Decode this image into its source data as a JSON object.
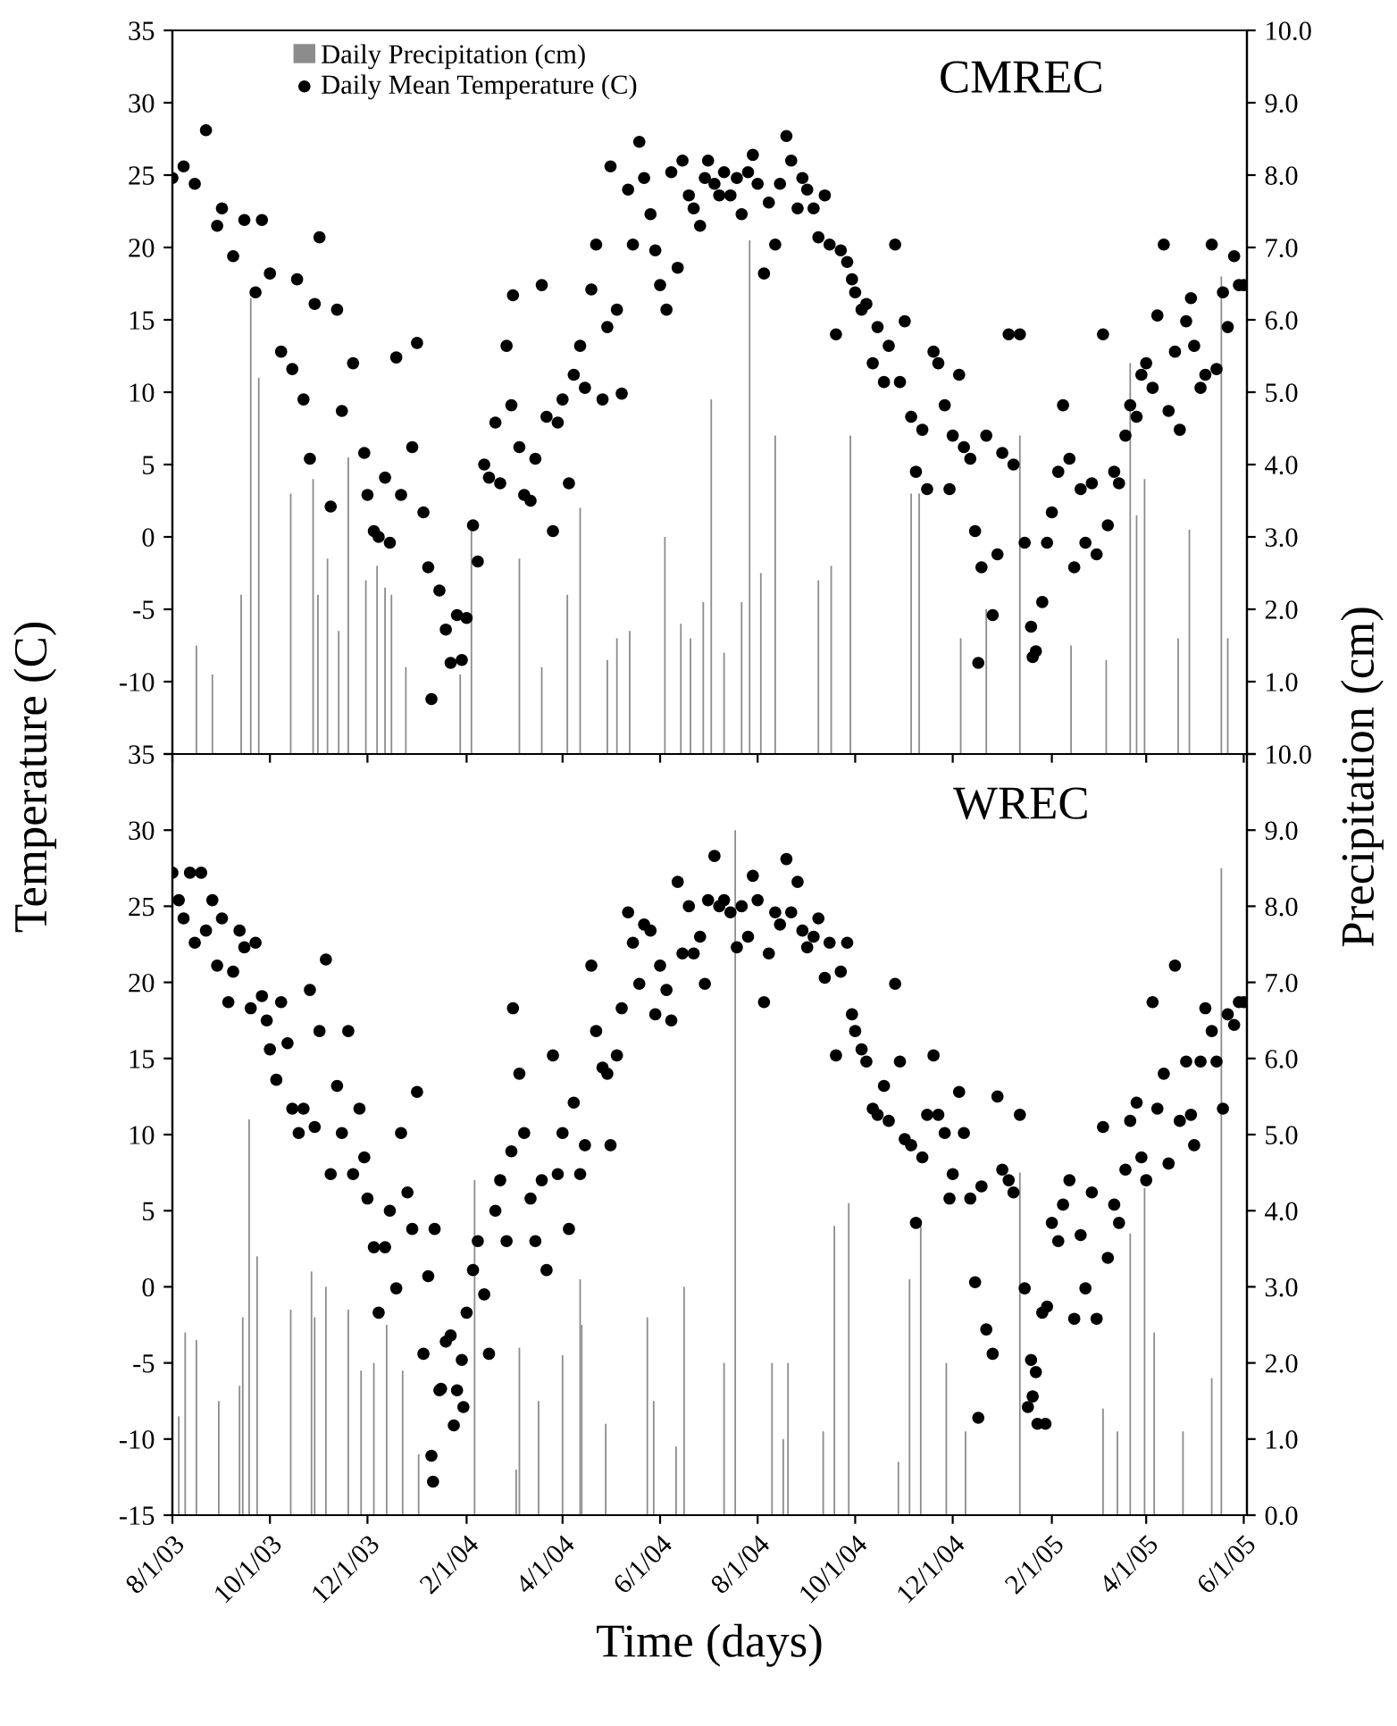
{
  "chart_data": [
    {
      "type": "scatter",
      "title": "CMREC",
      "ylabel": "Temperature (C)",
      "y2label": "Precipitation (cm)",
      "marker": "circle",
      "grid": false,
      "legend": "top left",
      "tick_labels": "y",
      "xlim": [
        "2003-08-01",
        "2005-06-03"
      ],
      "xticks": [
        {
          "value": "2003-08-01",
          "label": null
        },
        {
          "value": "2003-10-01",
          "label": null
        },
        {
          "value": "2003-12-01",
          "label": null
        },
        {
          "value": "2004-02-01",
          "label": null
        },
        {
          "value": "2004-04-01",
          "label": null
        },
        {
          "value": "2004-06-01",
          "label": null
        },
        {
          "value": "2004-08-01",
          "label": null
        },
        {
          "value": "2004-10-01",
          "label": null
        },
        {
          "value": "2004-12-01",
          "label": null
        },
        {
          "value": "2005-02-01",
          "label": null
        },
        {
          "value": "2005-04-01",
          "label": null
        },
        {
          "value": "2005-06-01",
          "label": null
        }
      ],
      "ylim": [
        -15,
        35
      ],
      "yticks": [
        {
          "value": -15,
          "label": null
        },
        -10,
        -5,
        0,
        5,
        10,
        15,
        20,
        25,
        30,
        35
      ],
      "y2lim": [
        0,
        10
      ],
      "y2ticks": [
        {
          "value": 0,
          "label": null
        },
        {
          "value": 1,
          "label": "1.0"
        },
        {
          "value": 2,
          "label": "2.0"
        },
        {
          "value": 3,
          "label": "3.0"
        },
        {
          "value": 4,
          "label": "4.0"
        },
        {
          "value": 5,
          "label": "5.0"
        },
        {
          "value": 6,
          "label": "6.0"
        },
        {
          "value": 7,
          "label": "7.0"
        },
        {
          "value": 8,
          "label": "8.0"
        },
        {
          "value": 9,
          "label": "9.0"
        },
        {
          "value": 10,
          "label": "10.0"
        }
      ],
      "series": [
        {
          "name": "Daily Precipitation (cm)",
          "type": "bar",
          "axis": "y2",
          "color": "#8c8c8c",
          "x": [
            "2003-08-16",
            "2003-08-26",
            "2003-09-13",
            "2003-09-19",
            "2003-09-24",
            "2003-10-14",
            "2003-10-28",
            "2003-10-31",
            "2003-11-06",
            "2003-11-13",
            "2003-11-19",
            "2003-11-30",
            "2003-12-07",
            "2003-12-12",
            "2003-12-16",
            "2003-12-25",
            "2004-01-28",
            "2004-02-04",
            "2004-03-05",
            "2004-03-19",
            "2004-04-04",
            "2004-04-12",
            "2004-04-29",
            "2004-05-05",
            "2004-05-13",
            "2004-06-04",
            "2004-06-14",
            "2004-06-20",
            "2004-06-28",
            "2004-07-03",
            "2004-07-11",
            "2004-07-22",
            "2004-07-27",
            "2004-08-03",
            "2004-08-12",
            "2004-09-08",
            "2004-09-16",
            "2004-09-28",
            "2004-11-05",
            "2004-11-10",
            "2004-12-06",
            "2004-12-22",
            "2005-01-12",
            "2005-02-13",
            "2005-03-07",
            "2005-03-22",
            "2005-03-26",
            "2005-03-31",
            "2005-04-21",
            "2005-04-28",
            "2005-05-18",
            "2005-05-22"
          ],
          "values": [
            1.5,
            1.1,
            2.2,
            6.3,
            5.2,
            3.6,
            3.8,
            2.2,
            2.7,
            1.7,
            4.1,
            2.4,
            2.6,
            2.3,
            2.2,
            1.2,
            1.1,
            3.1,
            2.7,
            1.2,
            2.2,
            3.4,
            1.3,
            1.6,
            1.7,
            3.0,
            1.8,
            1.6,
            2.1,
            4.9,
            1.4,
            2.1,
            7.1,
            2.5,
            4.4,
            2.4,
            2.6,
            4.4,
            3.6,
            3.6,
            1.6,
            2.0,
            4.4,
            1.5,
            1.3,
            5.4,
            3.3,
            3.8,
            1.6,
            3.1,
            6.6,
            1.6
          ]
        },
        {
          "name": "Daily Mean Temperature (C)",
          "color": "#000000",
          "x": [
            "2003-08-01",
            "2003-08-08",
            "2003-08-15",
            "2003-08-22",
            "2003-08-29",
            "2003-09-01",
            "2003-09-08",
            "2003-09-15",
            "2003-09-22",
            "2003-09-26",
            "2003-10-01",
            "2003-10-08",
            "2003-10-15",
            "2003-10-18",
            "2003-10-22",
            "2003-10-26",
            "2003-10-29",
            "2003-11-01",
            "2003-11-08",
            "2003-11-12",
            "2003-11-15",
            "2003-11-22",
            "2003-11-29",
            "2003-12-01",
            "2003-12-05",
            "2003-12-08",
            "2003-12-12",
            "2003-12-15",
            "2003-12-19",
            "2003-12-22",
            "2003-12-29",
            "2004-01-01",
            "2004-01-05",
            "2004-01-08",
            "2004-01-10",
            "2004-01-15",
            "2004-01-19",
            "2004-01-22",
            "2004-01-26",
            "2004-01-29",
            "2004-02-01",
            "2004-02-05",
            "2004-02-08",
            "2004-02-12",
            "2004-02-15",
            "2004-02-19",
            "2004-02-22",
            "2004-02-26",
            "2004-02-29",
            "2004-03-01",
            "2004-03-05",
            "2004-03-08",
            "2004-03-12",
            "2004-03-15",
            "2004-03-19",
            "2004-03-22",
            "2004-03-26",
            "2004-03-29",
            "2004-04-01",
            "2004-04-05",
            "2004-04-08",
            "2004-04-12",
            "2004-04-15",
            "2004-04-19",
            "2004-04-22",
            "2004-04-26",
            "2004-04-29",
            "2004-05-01",
            "2004-05-05",
            "2004-05-08",
            "2004-05-12",
            "2004-05-15",
            "2004-05-19",
            "2004-05-22",
            "2004-05-26",
            "2004-05-29",
            "2004-06-01",
            "2004-06-05",
            "2004-06-08",
            "2004-06-12",
            "2004-06-15",
            "2004-06-19",
            "2004-06-22",
            "2004-06-26",
            "2004-06-29",
            "2004-07-01",
            "2004-07-05",
            "2004-07-08",
            "2004-07-11",
            "2004-07-15",
            "2004-07-19",
            "2004-07-22",
            "2004-07-26",
            "2004-07-29",
            "2004-08-01",
            "2004-08-05",
            "2004-08-08",
            "2004-08-12",
            "2004-08-15",
            "2004-08-19",
            "2004-08-22",
            "2004-08-26",
            "2004-08-29",
            "2004-09-01",
            "2004-09-05",
            "2004-09-08",
            "2004-09-12",
            "2004-09-15",
            "2004-09-19",
            "2004-09-22",
            "2004-09-26",
            "2004-09-29",
            "2004-10-01",
            "2004-10-05",
            "2004-10-08",
            "2004-10-12",
            "2004-10-15",
            "2004-10-19",
            "2004-10-22",
            "2004-10-26",
            "2004-10-29",
            "2004-11-01",
            "2004-11-05",
            "2004-11-08",
            "2004-11-12",
            "2004-11-15",
            "2004-11-19",
            "2004-11-22",
            "2004-11-26",
            "2004-11-29",
            "2004-12-01",
            "2004-12-05",
            "2004-12-08",
            "2004-12-12",
            "2004-12-15",
            "2004-12-17",
            "2004-12-19",
            "2004-12-22",
            "2004-12-26",
            "2004-12-29",
            "2005-01-01",
            "2005-01-05",
            "2005-01-08",
            "2005-01-12",
            "2005-01-15",
            "2005-01-19",
            "2005-01-20",
            "2005-01-22",
            "2005-01-26",
            "2005-01-29",
            "2005-02-01",
            "2005-02-05",
            "2005-02-08",
            "2005-02-12",
            "2005-02-15",
            "2005-02-19",
            "2005-02-22",
            "2005-02-26",
            "2005-03-01",
            "2005-03-05",
            "2005-03-08",
            "2005-03-12",
            "2005-03-15",
            "2005-03-19",
            "2005-03-22",
            "2005-03-26",
            "2005-03-29",
            "2005-04-01",
            "2005-04-05",
            "2005-04-08",
            "2005-04-12",
            "2005-04-15",
            "2005-04-19",
            "2005-04-22",
            "2005-04-26",
            "2005-04-29",
            "2005-05-01",
            "2005-05-05",
            "2005-05-08",
            "2005-05-12",
            "2005-05-15",
            "2005-05-19",
            "2005-05-22",
            "2005-05-26",
            "2005-05-29",
            "2005-06-01"
          ],
          "values": [
            24.8,
            25.6,
            24.4,
            28.1,
            21.5,
            22.7,
            19.4,
            21.9,
            16.9,
            21.9,
            18.2,
            12.8,
            11.6,
            17.8,
            9.5,
            5.4,
            16.1,
            20.7,
            2.1,
            15.7,
            8.7,
            12.0,
            5.8,
            2.9,
            0.4,
            0.0,
            4.1,
            -0.4,
            12.4,
            2.9,
            6.2,
            13.4,
            1.7,
            -2.1,
            -11.2,
            -3.7,
            -6.4,
            -8.7,
            -5.4,
            -8.5,
            -5.6,
            0.8,
            -1.7,
            5.0,
            4.1,
            7.9,
            3.7,
            13.2,
            9.1,
            16.7,
            6.2,
            2.9,
            2.5,
            5.4,
            17.4,
            8.3,
            0.4,
            7.9,
            9.5,
            3.7,
            11.2,
            13.2,
            10.3,
            17.1,
            20.2,
            9.5,
            14.5,
            25.6,
            15.7,
            9.9,
            24.0,
            20.2,
            27.3,
            24.8,
            22.3,
            19.8,
            17.4,
            15.7,
            25.2,
            18.6,
            26.0,
            23.6,
            22.7,
            21.5,
            24.8,
            26.0,
            24.4,
            23.6,
            25.2,
            23.6,
            24.8,
            22.3,
            25.2,
            26.4,
            24.4,
            18.2,
            23.1,
            20.2,
            24.4,
            27.7,
            26.0,
            22.7,
            24.8,
            24.0,
            22.7,
            20.7,
            23.6,
            20.2,
            14.0,
            19.8,
            19.0,
            17.8,
            16.9,
            15.7,
            16.1,
            12.0,
            14.5,
            10.7,
            13.2,
            20.2,
            10.7,
            14.9,
            8.3,
            4.5,
            7.4,
            3.3,
            12.8,
            12.0,
            9.1,
            3.3,
            7.0,
            11.2,
            6.2,
            5.4,
            0.4,
            -8.7,
            -2.1,
            7.0,
            -5.4,
            -1.2,
            5.8,
            14.0,
            5.0,
            14.0,
            -0.4,
            -6.2,
            -8.3,
            -7.9,
            -4.5,
            -0.4,
            1.7,
            4.5,
            9.1,
            5.4,
            -2.1,
            3.3,
            -0.4,
            3.7,
            -1.2,
            14.0,
            0.8,
            4.5,
            3.7,
            7.0,
            9.1,
            8.3,
            11.2,
            12.0,
            10.3,
            15.3,
            20.2,
            8.7,
            12.8,
            7.4,
            14.9,
            16.5,
            13.2,
            10.3,
            11.2,
            20.2,
            11.6,
            16.9,
            14.5,
            19.4,
            17.4,
            17.4
          ]
        }
      ]
    },
    {
      "type": "scatter",
      "title": "WREC",
      "xlabel": "Time (days)",
      "marker": "circle",
      "grid": false,
      "xlim": [
        "2003-08-01",
        "2005-06-03"
      ],
      "xticks": [
        {
          "value": "2003-08-01",
          "label": "8/1/03"
        },
        {
          "value": "2003-10-01",
          "label": "10/1/03"
        },
        {
          "value": "2003-12-01",
          "label": "12/1/03"
        },
        {
          "value": "2004-02-01",
          "label": "2/1/04"
        },
        {
          "value": "2004-04-01",
          "label": "4/1/04"
        },
        {
          "value": "2004-06-01",
          "label": "6/1/04"
        },
        {
          "value": "2004-08-01",
          "label": "8/1/04"
        },
        {
          "value": "2004-10-01",
          "label": "10/1/04"
        },
        {
          "value": "2004-12-01",
          "label": "12/1/04"
        },
        {
          "value": "2005-02-01",
          "label": "2/1/05"
        },
        {
          "value": "2005-04-01",
          "label": "4/1/05"
        },
        {
          "value": "2005-06-01",
          "label": "6/1/05"
        }
      ],
      "ylim": [
        -15,
        35
      ],
      "yticks": [
        -15,
        -10,
        -5,
        0,
        5,
        10,
        15,
        20,
        25,
        30,
        35
      ],
      "y2lim": [
        0,
        10
      ],
      "y2ticks": [
        {
          "value": 0,
          "label": "0.0"
        },
        {
          "value": 1,
          "label": "1.0"
        },
        {
          "value": 2,
          "label": "2.0"
        },
        {
          "value": 3,
          "label": "3.0"
        },
        {
          "value": 4,
          "label": "4.0"
        },
        {
          "value": 5,
          "label": "5.0"
        },
        {
          "value": 6,
          "label": "6.0"
        },
        {
          "value": 7,
          "label": "7.0"
        },
        {
          "value": 8,
          "label": "8.0"
        },
        {
          "value": 9,
          "label": "9.0"
        },
        {
          "value": 10,
          "label": "10.0"
        }
      ],
      "series": [
        {
          "type": "bar",
          "axis": "y2",
          "color": "#8c8c8c",
          "x": [
            "2003-08-05",
            "2003-08-09",
            "2003-08-16",
            "2003-08-30",
            "2003-09-12",
            "2003-09-14",
            "2003-09-18",
            "2003-09-23",
            "2003-10-14",
            "2003-10-27",
            "2003-10-29",
            "2003-11-05",
            "2003-11-19",
            "2003-11-27",
            "2003-12-05",
            "2003-12-13",
            "2003-12-23",
            "2004-01-02",
            "2004-02-06",
            "2004-03-03",
            "2004-03-05",
            "2004-03-17",
            "2004-04-01",
            "2004-04-12",
            "2004-04-13",
            "2004-04-28",
            "2004-05-24",
            "2004-05-28",
            "2004-06-11",
            "2004-06-16",
            "2004-07-11",
            "2004-07-18",
            "2004-08-10",
            "2004-08-17",
            "2004-08-20",
            "2004-09-11",
            "2004-09-18",
            "2004-09-27",
            "2004-10-28",
            "2004-11-04",
            "2004-11-11",
            "2004-11-27",
            "2004-12-09",
            "2005-01-12",
            "2005-03-05",
            "2005-03-14",
            "2005-03-22",
            "2005-03-31",
            "2005-04-06",
            "2005-04-24",
            "2005-05-12",
            "2005-05-18"
          ],
          "values": [
            1.3,
            2.4,
            2.3,
            1.5,
            1.7,
            2.6,
            5.2,
            3.4,
            2.7,
            3.2,
            2.6,
            3.0,
            2.7,
            1.9,
            2.0,
            2.5,
            1.9,
            0.8,
            4.4,
            0.6,
            2.2,
            1.5,
            2.1,
            3.1,
            2.5,
            1.2,
            2.6,
            1.5,
            0.9,
            3.0,
            2.0,
            9.0,
            2.0,
            1.0,
            2.0,
            1.1,
            3.8,
            4.1,
            0.7,
            3.1,
            3.8,
            2.0,
            1.1,
            4.5,
            1.4,
            1.1,
            3.7,
            4.3,
            2.4,
            1.1,
            1.8,
            8.5
          ]
        },
        {
          "color": "#000000",
          "x": [
            "2003-08-01",
            "2003-08-05",
            "2003-08-08",
            "2003-08-12",
            "2003-08-15",
            "2003-08-19",
            "2003-08-22",
            "2003-08-26",
            "2003-08-29",
            "2003-09-01",
            "2003-09-05",
            "2003-09-08",
            "2003-09-12",
            "2003-09-15",
            "2003-09-19",
            "2003-09-22",
            "2003-09-26",
            "2003-09-29",
            "2003-10-01",
            "2003-10-05",
            "2003-10-08",
            "2003-10-12",
            "2003-10-15",
            "2003-10-19",
            "2003-10-22",
            "2003-10-26",
            "2003-10-29",
            "2003-11-01",
            "2003-11-05",
            "2003-11-08",
            "2003-11-12",
            "2003-11-15",
            "2003-11-19",
            "2003-11-22",
            "2003-11-26",
            "2003-11-29",
            "2003-12-01",
            "2003-12-05",
            "2003-12-08",
            "2003-12-12",
            "2003-12-15",
            "2003-12-19",
            "2003-12-22",
            "2003-12-26",
            "2003-12-29",
            "2004-01-01",
            "2004-01-05",
            "2004-01-08",
            "2004-01-10",
            "2004-01-11",
            "2004-01-12",
            "2004-01-15",
            "2004-01-16",
            "2004-01-19",
            "2004-01-22",
            "2004-01-24",
            "2004-01-26",
            "2004-01-29",
            "2004-01-30",
            "2004-02-01",
            "2004-02-05",
            "2004-02-08",
            "2004-02-12",
            "2004-02-15",
            "2004-02-19",
            "2004-02-22",
            "2004-02-26",
            "2004-02-29",
            "2004-03-01",
            "2004-03-05",
            "2004-03-08",
            "2004-03-12",
            "2004-03-15",
            "2004-03-19",
            "2004-03-22",
            "2004-03-26",
            "2004-03-29",
            "2004-04-01",
            "2004-04-05",
            "2004-04-08",
            "2004-04-12",
            "2004-04-15",
            "2004-04-19",
            "2004-04-22",
            "2004-04-26",
            "2004-04-29",
            "2004-05-01",
            "2004-05-05",
            "2004-05-08",
            "2004-05-12",
            "2004-05-15",
            "2004-05-19",
            "2004-05-22",
            "2004-05-26",
            "2004-05-29",
            "2004-06-01",
            "2004-06-05",
            "2004-06-08",
            "2004-06-12",
            "2004-06-15",
            "2004-06-19",
            "2004-06-22",
            "2004-06-26",
            "2004-06-29",
            "2004-07-01",
            "2004-07-05",
            "2004-07-08",
            "2004-07-11",
            "2004-07-15",
            "2004-07-19",
            "2004-07-22",
            "2004-07-26",
            "2004-07-29",
            "2004-08-01",
            "2004-08-05",
            "2004-08-08",
            "2004-08-12",
            "2004-08-15",
            "2004-08-19",
            "2004-08-22",
            "2004-08-26",
            "2004-08-29",
            "2004-09-01",
            "2004-09-05",
            "2004-09-08",
            "2004-09-12",
            "2004-09-15",
            "2004-09-19",
            "2004-09-22",
            "2004-09-26",
            "2004-09-29",
            "2004-10-01",
            "2004-10-05",
            "2004-10-08",
            "2004-10-12",
            "2004-10-15",
            "2004-10-19",
            "2004-10-22",
            "2004-10-26",
            "2004-10-29",
            "2004-11-01",
            "2004-11-05",
            "2004-11-08",
            "2004-11-12",
            "2004-11-15",
            "2004-11-19",
            "2004-11-22",
            "2004-11-26",
            "2004-11-29",
            "2004-12-01",
            "2004-12-05",
            "2004-12-08",
            "2004-12-12",
            "2004-12-15",
            "2004-12-17",
            "2004-12-19",
            "2004-12-22",
            "2004-12-26",
            "2004-12-29",
            "2005-01-01",
            "2005-01-05",
            "2005-01-08",
            "2005-01-12",
            "2005-01-15",
            "2005-01-17",
            "2005-01-19",
            "2005-01-20",
            "2005-01-22",
            "2005-01-23",
            "2005-01-26",
            "2005-01-28",
            "2005-01-29",
            "2005-02-01",
            "2005-02-05",
            "2005-02-08",
            "2005-02-12",
            "2005-02-15",
            "2005-02-19",
            "2005-02-22",
            "2005-02-26",
            "2005-03-01",
            "2005-03-05",
            "2005-03-08",
            "2005-03-12",
            "2005-03-15",
            "2005-03-19",
            "2005-03-22",
            "2005-03-26",
            "2005-03-29",
            "2005-04-01",
            "2005-04-05",
            "2005-04-08",
            "2005-04-12",
            "2005-04-15",
            "2005-04-19",
            "2005-04-22",
            "2005-04-26",
            "2005-04-29",
            "2005-05-01",
            "2005-05-05",
            "2005-05-08",
            "2005-05-12",
            "2005-05-15",
            "2005-05-19",
            "2005-05-22",
            "2005-05-26",
            "2005-05-29",
            "2005-06-01"
          ],
          "values": [
            27.2,
            25.4,
            24.2,
            27.2,
            22.6,
            27.2,
            23.4,
            25.4,
            21.1,
            24.2,
            18.7,
            20.7,
            23.4,
            22.3,
            18.3,
            22.6,
            19.1,
            17.5,
            15.6,
            13.6,
            18.7,
            16.0,
            11.7,
            10.1,
            11.7,
            19.5,
            10.5,
            16.8,
            21.5,
            7.4,
            13.2,
            10.1,
            16.8,
            7.4,
            11.7,
            8.5,
            5.8,
            2.6,
            -1.7,
            2.6,
            5.0,
            -0.1,
            10.1,
            6.2,
            3.8,
            12.8,
            -4.4,
            0.7,
            -11.1,
            -12.8,
            3.8,
            -6.8,
            -6.7,
            -3.6,
            -3.2,
            -9.1,
            -6.8,
            -4.8,
            -7.9,
            -1.7,
            1.1,
            3.0,
            -0.5,
            -4.4,
            5.0,
            7.0,
            3.0,
            8.9,
            18.3,
            14.0,
            10.1,
            5.8,
            3.0,
            7.0,
            1.1,
            15.2,
            7.4,
            10.1,
            3.8,
            12.1,
            7.4,
            9.3,
            21.1,
            16.8,
            14.4,
            14.0,
            9.3,
            15.2,
            18.3,
            24.6,
            22.6,
            19.9,
            23.8,
            23.4,
            17.9,
            21.1,
            19.5,
            17.5,
            26.6,
            21.9,
            25.0,
            21.9,
            23.0,
            19.9,
            25.4,
            28.3,
            25.0,
            25.4,
            24.6,
            22.3,
            25.0,
            23.0,
            27.0,
            25.4,
            18.7,
            21.9,
            24.6,
            23.8,
            28.1,
            24.6,
            26.6,
            23.4,
            22.3,
            23.0,
            24.2,
            20.3,
            22.6,
            15.2,
            20.7,
            22.6,
            17.9,
            16.8,
            15.6,
            14.8,
            11.7,
            11.3,
            13.2,
            10.9,
            19.9,
            14.8,
            9.7,
            9.3,
            4.2,
            8.5,
            11.3,
            15.2,
            11.3,
            10.1,
            5.8,
            7.4,
            12.8,
            10.1,
            5.8,
            0.3,
            -8.6,
            6.6,
            -2.8,
            -4.4,
            12.5,
            7.7,
            7.0,
            6.2,
            11.3,
            -0.1,
            -7.9,
            -4.8,
            -7.2,
            -5.6,
            -9.0,
            -1.7,
            -9.0,
            -1.3,
            4.2,
            3.0,
            5.4,
            7.0,
            -2.1,
            3.4,
            -0.1,
            6.2,
            -2.1,
            10.5,
            1.9,
            5.4,
            4.2,
            7.7,
            10.9,
            12.1,
            8.5,
            7.0,
            18.7,
            11.7,
            14.0,
            8.1,
            21.1,
            10.9,
            14.8,
            11.3,
            9.3,
            14.8,
            18.3,
            16.8,
            14.8,
            11.7,
            17.9,
            17.2,
            18.7,
            18.7
          ]
        }
      ]
    }
  ]
}
